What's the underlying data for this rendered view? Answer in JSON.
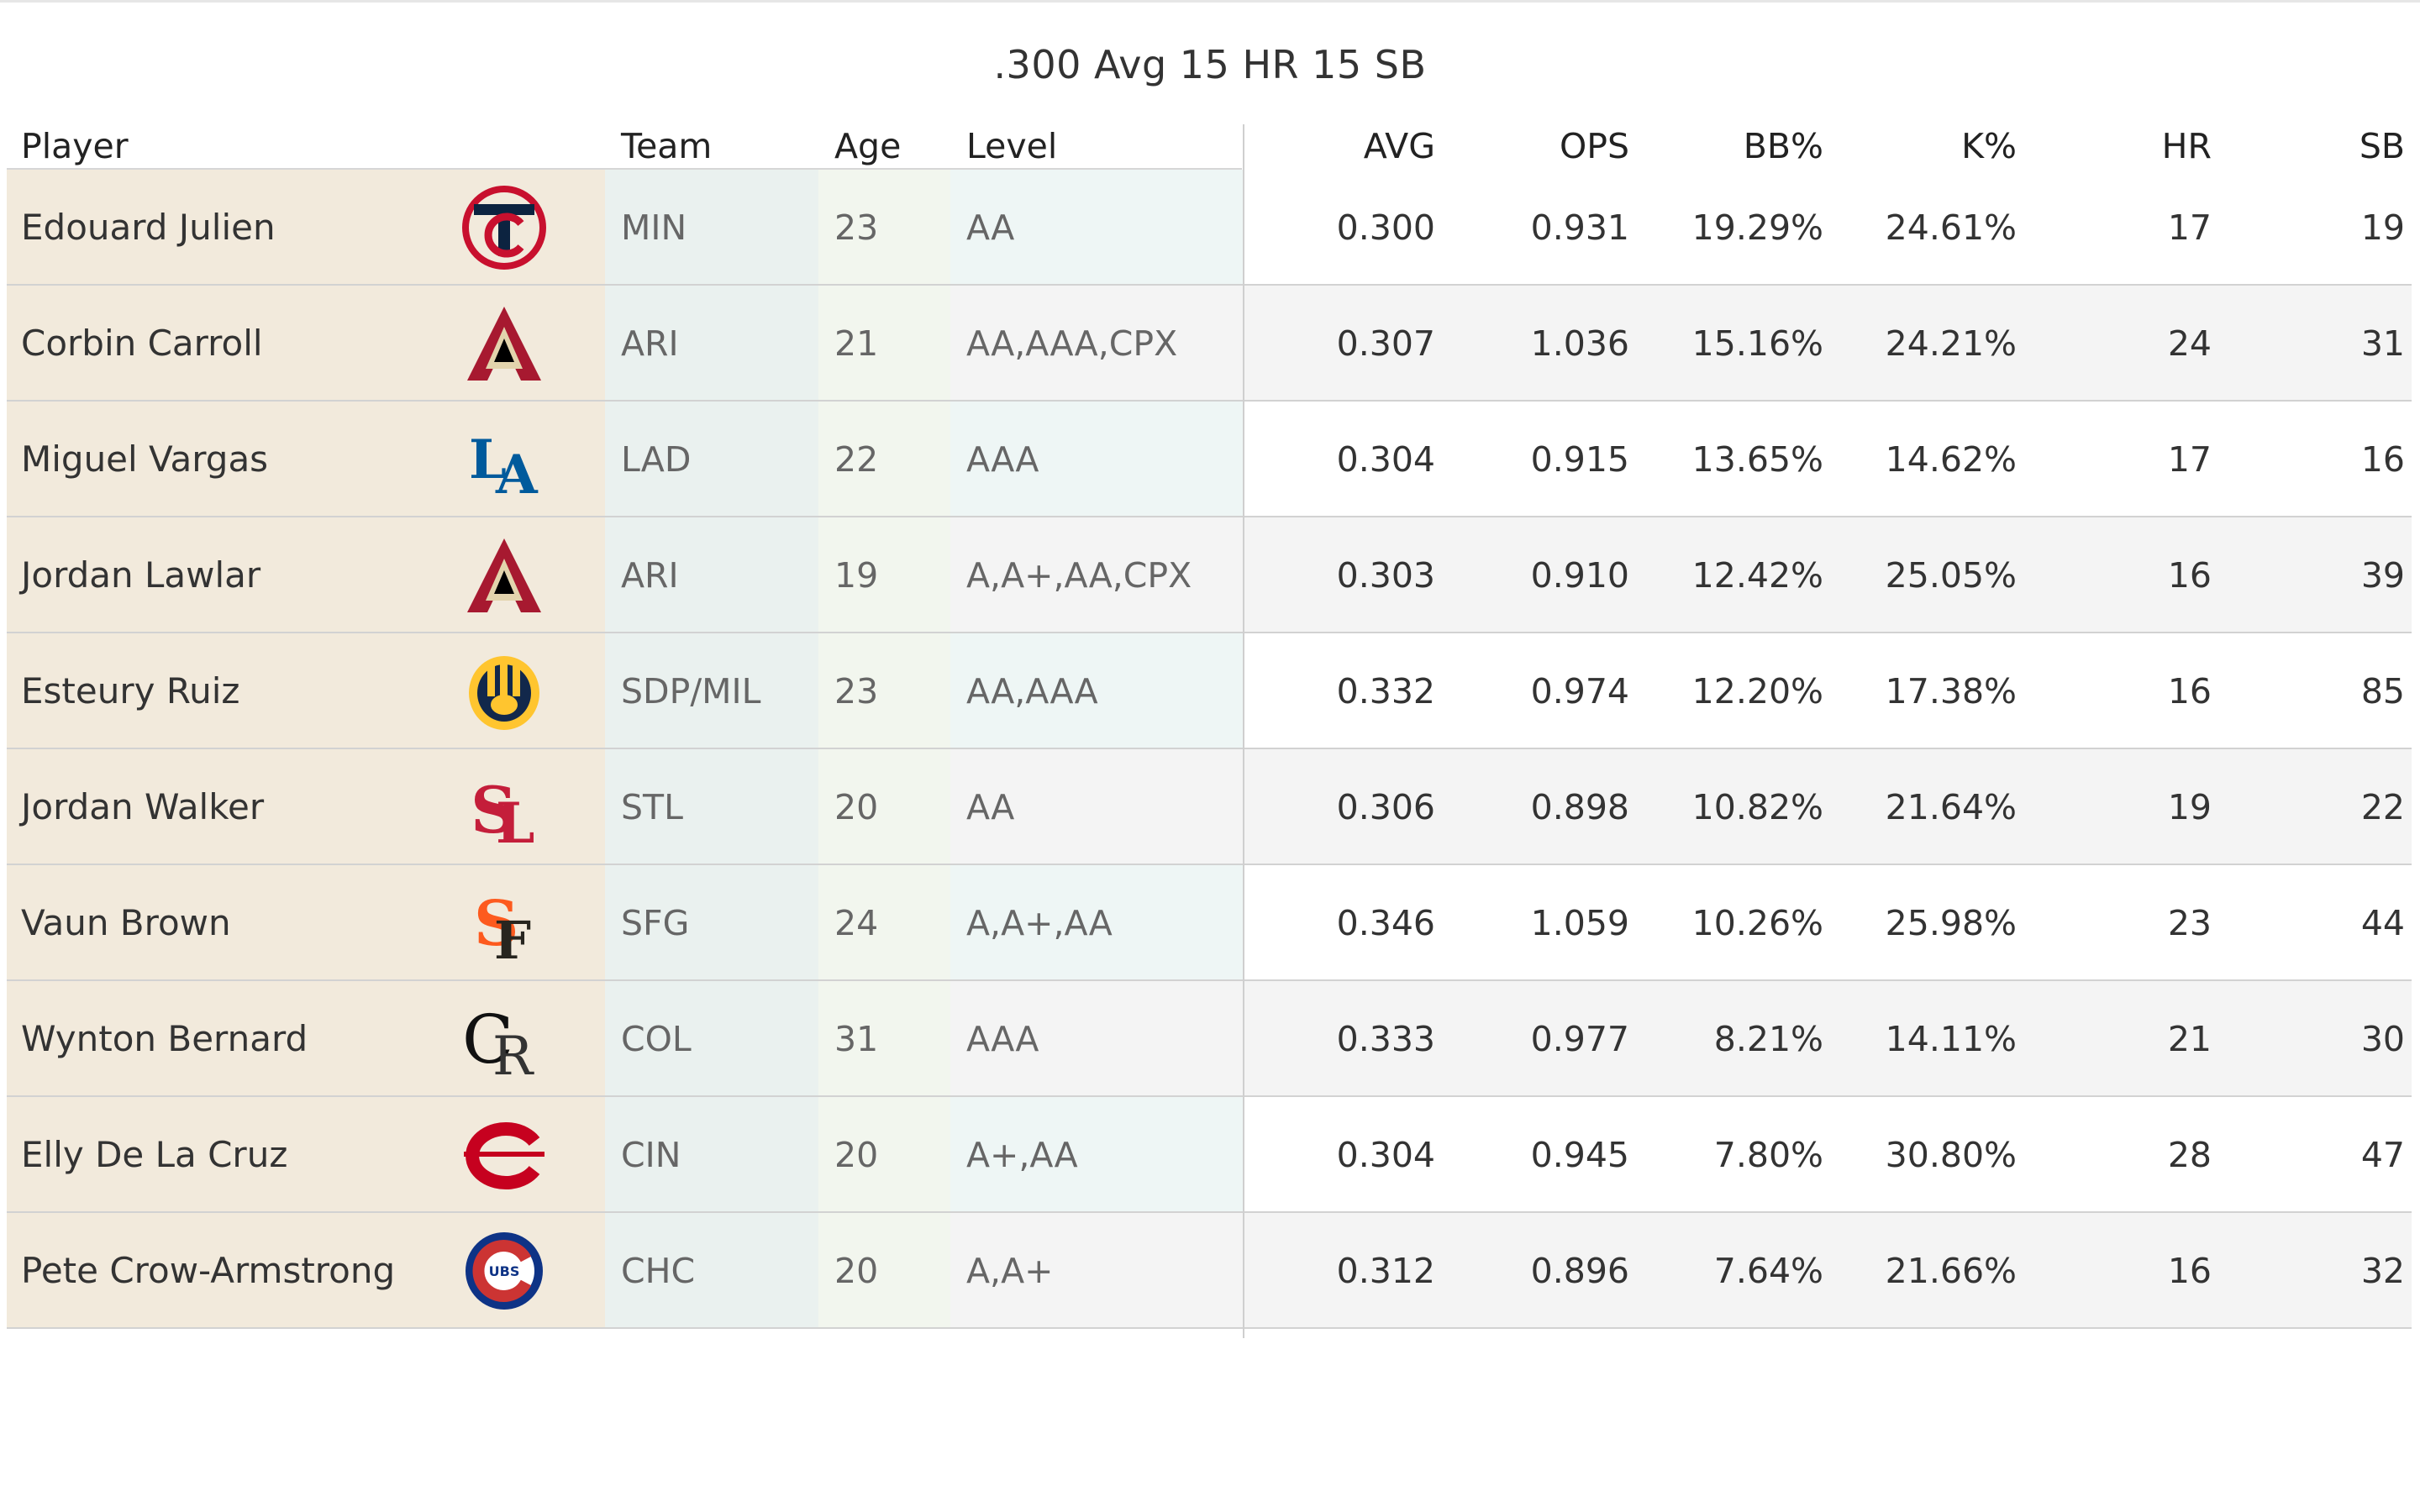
{
  "chart_data": {
    "type": "table",
    "title": ".300 Avg 15 HR 15 SB",
    "columns": [
      "Player",
      "Team",
      "Age",
      "Level",
      "AVG",
      "OPS",
      "BB%",
      "K%",
      "HR",
      "SB"
    ],
    "rows": [
      {
        "player": "Edouard Julien",
        "logo": "twins-logo-icon",
        "team": "MIN",
        "age": "23",
        "level": "AA",
        "avg": "0.300",
        "ops": "0.931",
        "bb": "19.29%",
        "k": "24.61%",
        "hr": "17",
        "sb": "19"
      },
      {
        "player": "Corbin Carroll",
        "logo": "diamondbacks-logo-icon",
        "team": "ARI",
        "age": "21",
        "level": "AA,AAA,CPX",
        "avg": "0.307",
        "ops": "1.036",
        "bb": "15.16%",
        "k": "24.21%",
        "hr": "24",
        "sb": "31"
      },
      {
        "player": "Miguel Vargas",
        "logo": "dodgers-logo-icon",
        "team": "LAD",
        "age": "22",
        "level": "AAA",
        "avg": "0.304",
        "ops": "0.915",
        "bb": "13.65%",
        "k": "14.62%",
        "hr": "17",
        "sb": "16"
      },
      {
        "player": "Jordan Lawlar",
        "logo": "diamondbacks-logo-icon",
        "team": "ARI",
        "age": "19",
        "level": "A,A+,AA,CPX",
        "avg": "0.303",
        "ops": "0.910",
        "bb": "12.42%",
        "k": "25.05%",
        "hr": "16",
        "sb": "39"
      },
      {
        "player": "Esteury Ruiz",
        "logo": "brewers-logo-icon",
        "team": "SDP/MIL",
        "age": "23",
        "level": "AA,AAA",
        "avg": "0.332",
        "ops": "0.974",
        "bb": "12.20%",
        "k": "17.38%",
        "hr": "16",
        "sb": "85"
      },
      {
        "player": "Jordan Walker",
        "logo": "cardinals-logo-icon",
        "team": "STL",
        "age": "20",
        "level": "AA",
        "avg": "0.306",
        "ops": "0.898",
        "bb": "10.82%",
        "k": "21.64%",
        "hr": "19",
        "sb": "22"
      },
      {
        "player": "Vaun Brown",
        "logo": "giants-logo-icon",
        "team": "SFG",
        "age": "24",
        "level": "A,A+,AA",
        "avg": "0.346",
        "ops": "1.059",
        "bb": "10.26%",
        "k": "25.98%",
        "hr": "23",
        "sb": "44"
      },
      {
        "player": "Wynton Bernard",
        "logo": "rockies-logo-icon",
        "team": "COL",
        "age": "31",
        "level": "AAA",
        "avg": "0.333",
        "ops": "0.977",
        "bb": "8.21%",
        "k": "14.11%",
        "hr": "21",
        "sb": "30"
      },
      {
        "player": "Elly De La Cruz",
        "logo": "reds-logo-icon",
        "team": "CIN",
        "age": "20",
        "level": "A+,AA",
        "avg": "0.304",
        "ops": "0.945",
        "bb": "7.80%",
        "k": "30.80%",
        "hr": "28",
        "sb": "47"
      },
      {
        "player": "Pete Crow-Armstrong",
        "logo": "cubs-logo-icon",
        "team": "CHC",
        "age": "20",
        "level": "A,A+",
        "avg": "0.312",
        "ops": "0.896",
        "bb": "7.64%",
        "k": "21.66%",
        "hr": "16",
        "sb": "32"
      }
    ]
  },
  "colors": {
    "player_bg": "#f2eadc",
    "team_bg": "#eaf1ef",
    "age_bg": "#f2f6ee",
    "level_bg": "#eef6f5",
    "stripe_bg": "#f4f4f4"
  }
}
